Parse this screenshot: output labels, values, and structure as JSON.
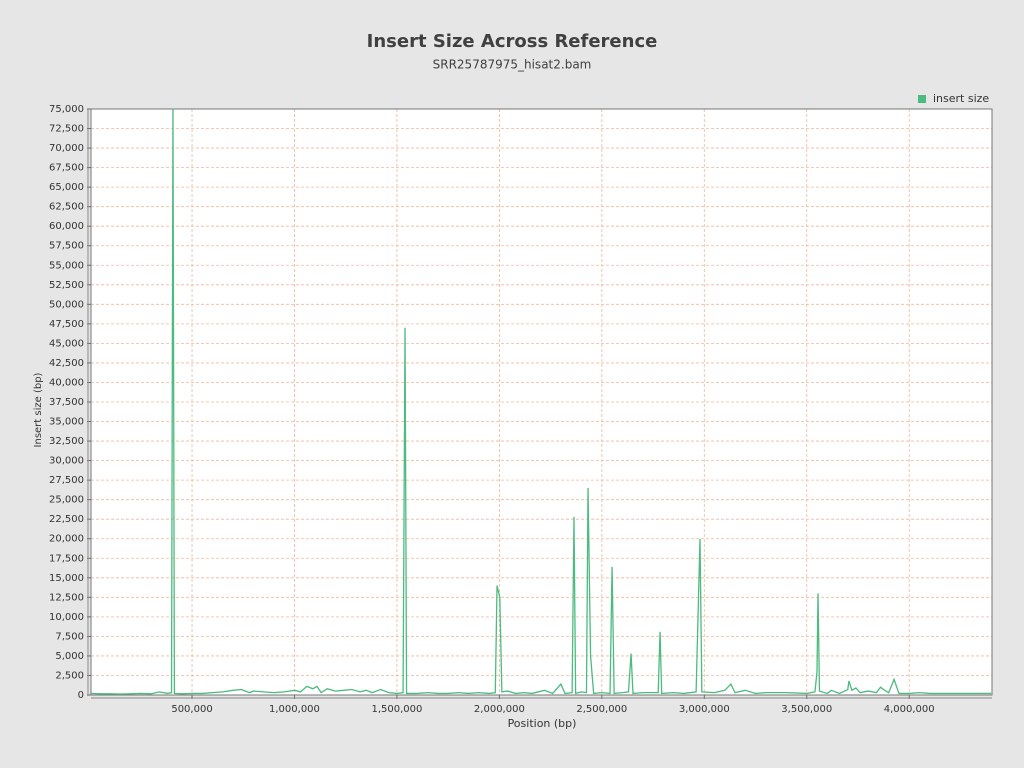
{
  "chart_data": {
    "type": "line",
    "title": "Insert Size Across Reference",
    "subtitle": "SRR25787975_hisat2.bam",
    "x_label": "Position (bp)",
    "y_label": "Insert size (bp)",
    "grid": true,
    "legend": "top-right",
    "xlim": [
      7000,
      4404000
    ],
    "ylim": [
      0,
      75000
    ],
    "xticks": [
      {
        "value": 500000,
        "label": "500,000"
      },
      {
        "value": 1000000,
        "label": "1,000,000"
      },
      {
        "value": 1500000,
        "label": "1,500,000"
      },
      {
        "value": 2000000,
        "label": "2,000,000"
      },
      {
        "value": 2500000,
        "label": "2,500,000"
      },
      {
        "value": 3000000,
        "label": "3,000,000"
      },
      {
        "value": 3500000,
        "label": "3,500,000"
      },
      {
        "value": 4000000,
        "label": "4,000,000"
      }
    ],
    "yticks": [
      0,
      {
        "value": 2500,
        "label": "2,500"
      },
      {
        "value": 5000,
        "label": "5,000"
      },
      {
        "value": 7500,
        "label": "7,500"
      },
      {
        "value": 10000,
        "label": "10,000"
      },
      {
        "value": 12500,
        "label": "12,500"
      },
      {
        "value": 15000,
        "label": "15,000"
      },
      {
        "value": 17500,
        "label": "17,500"
      },
      {
        "value": 20000,
        "label": "20,000"
      },
      {
        "value": 22500,
        "label": "22,500"
      },
      {
        "value": 25000,
        "label": "25,000"
      },
      {
        "value": 27500,
        "label": "27,500"
      },
      {
        "value": 30000,
        "label": "30,000"
      },
      {
        "value": 32500,
        "label": "32,500"
      },
      {
        "value": 35000,
        "label": "35,000"
      },
      {
        "value": 37500,
        "label": "37,500"
      },
      {
        "value": 40000,
        "label": "40,000"
      },
      {
        "value": 42500,
        "label": "42,500"
      },
      {
        "value": 45000,
        "label": "45,000"
      },
      {
        "value": 47500,
        "label": "47,500"
      },
      {
        "value": 50000,
        "label": "50,000"
      },
      {
        "value": 52500,
        "label": "52,500"
      },
      {
        "value": 55000,
        "label": "55,000"
      },
      {
        "value": 57500,
        "label": "57,500"
      },
      {
        "value": 60000,
        "label": "60,000"
      },
      {
        "value": 62500,
        "label": "62,500"
      },
      {
        "value": 65000,
        "label": "65,000"
      },
      {
        "value": 67500,
        "label": "67,500"
      },
      {
        "value": 70000,
        "label": "70,000"
      },
      {
        "value": 72500,
        "label": "72,500"
      },
      {
        "value": 75000,
        "label": "75,000"
      }
    ],
    "x": [
      10000,
      50000,
      100000,
      150000,
      200000,
      250000,
      300000,
      340000,
      380000,
      400000,
      407000,
      414000,
      450000,
      500000,
      550000,
      600000,
      650000,
      700000,
      740000,
      780000,
      800000,
      850000,
      900000,
      950000,
      1000000,
      1030000,
      1060000,
      1090000,
      1110000,
      1130000,
      1160000,
      1200000,
      1240000,
      1280000,
      1320000,
      1350000,
      1380000,
      1420000,
      1460000,
      1500000,
      1530000,
      1539500,
      1547000,
      1600000,
      1650000,
      1700000,
      1750000,
      1800000,
      1850000,
      1900000,
      1950000,
      1980000,
      1988500,
      2002000,
      2012000,
      2040000,
      2080000,
      2120000,
      2160000,
      2220000,
      2260000,
      2300000,
      2320000,
      2355000,
      2364000,
      2372000,
      2400000,
      2425000,
      2432500,
      2445000,
      2460000,
      2500000,
      2540000,
      2549800,
      2560000,
      2600000,
      2630000,
      2642500,
      2652000,
      2700000,
      2775000,
      2784000,
      2792000,
      2850000,
      2900000,
      2960000,
      2979000,
      2988000,
      3050000,
      3100000,
      3130000,
      3150000,
      3200000,
      3250000,
      3300000,
      3400000,
      3500000,
      3540000,
      3550000,
      3555000,
      3562000,
      3600000,
      3620000,
      3660000,
      3700000,
      3706000,
      3720000,
      3740000,
      3760000,
      3800000,
      3840000,
      3860000,
      3880000,
      3900000,
      3926000,
      3950000,
      4000000,
      4050000,
      4100000,
      4200000,
      4300000,
      4400000
    ],
    "series": [
      {
        "name": "insert size",
        "color": "#4cbb7f",
        "values": [
          200,
          150,
          150,
          120,
          150,
          200,
          150,
          400,
          200,
          300,
          75000,
          200,
          150,
          200,
          200,
          300,
          400,
          600,
          700,
          300,
          500,
          400,
          300,
          400,
          600,
          400,
          1100,
          800,
          1100,
          300,
          800,
          500,
          600,
          700,
          400,
          600,
          300,
          700,
          300,
          200,
          300,
          47000,
          200,
          200,
          300,
          200,
          200,
          300,
          200,
          300,
          200,
          300,
          14000,
          12500,
          400,
          500,
          200,
          300,
          200,
          600,
          200,
          1400,
          200,
          300,
          22800,
          200,
          400,
          300,
          26500,
          5000,
          200,
          300,
          200,
          16400,
          200,
          300,
          400,
          5300,
          200,
          300,
          300,
          8100,
          200,
          300,
          200,
          400,
          20000,
          400,
          300,
          600,
          1400,
          300,
          600,
          200,
          300,
          300,
          200,
          400,
          3000,
          13000,
          500,
          200,
          600,
          200,
          700,
          1800,
          600,
          900,
          300,
          500,
          300,
          1000,
          600,
          300,
          2000,
          200,
          200,
          300,
          200,
          200,
          200,
          200
        ]
      }
    ]
  }
}
